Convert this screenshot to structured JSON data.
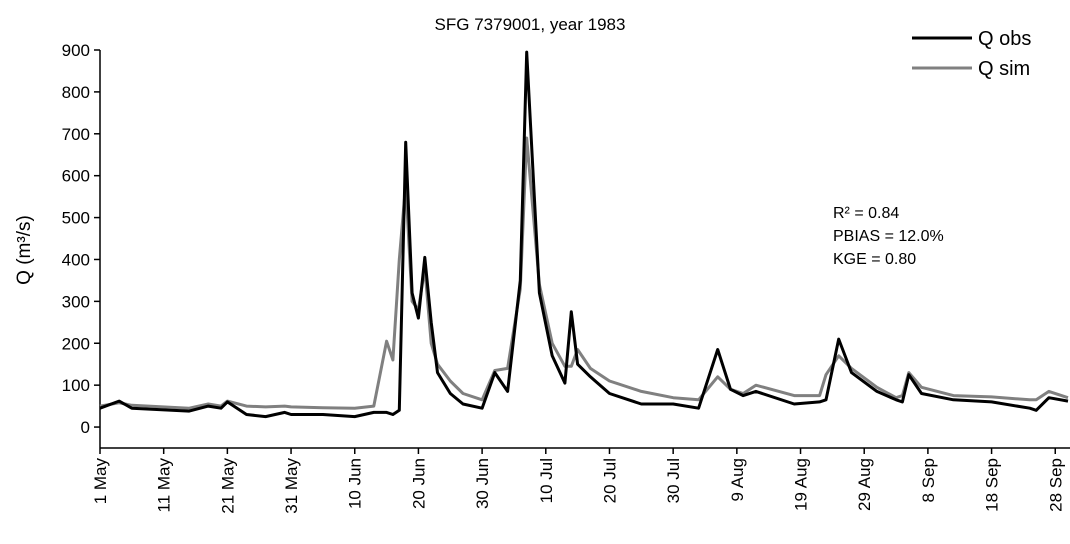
{
  "chart_data": {
    "type": "line",
    "title": "SFG 7379001, year 1983",
    "y_label": "Q (m³/s)",
    "x": [
      "1 May",
      "4 May",
      "6 May",
      "15 May",
      "18 May",
      "20 May",
      "21 May",
      "24 May",
      "27 May",
      "30 May",
      "31 May",
      "5 Jun",
      "10 Jun",
      "13 Jun",
      "15 Jun",
      "16 Jun",
      "17 Jun",
      "18 Jun",
      "19 Jun",
      "20 Jun",
      "21 Jun",
      "22 Jun",
      "23 Jun",
      "25 Jun",
      "27 Jun",
      "30 Jun",
      "2 Jul",
      "4 Jul",
      "6 Jul",
      "7 Jul",
      "9 Jul",
      "11 Jul",
      "13 Jul",
      "14 Jul",
      "15 Jul",
      "17 Jul",
      "20 Jul",
      "25 Jul",
      "30 Jul",
      "3 Aug",
      "6 Aug",
      "8 Aug",
      "10 Aug",
      "12 Aug",
      "18 Aug",
      "22 Aug",
      "23 Aug",
      "25 Aug",
      "27 Aug",
      "31 Aug",
      "3 Sep",
      "4 Sep",
      "5 Sep",
      "7 Sep",
      "12 Sep",
      "18 Sep",
      "24 Sep",
      "25 Sep",
      "27 Sep",
      "30 Sep"
    ],
    "series": [
      {
        "name": "Q obs",
        "color": "#000000",
        "width": 3,
        "values": [
          45,
          62,
          45,
          38,
          50,
          45,
          60,
          30,
          25,
          35,
          30,
          30,
          25,
          35,
          35,
          30,
          40,
          680,
          320,
          260,
          405,
          250,
          130,
          80,
          55,
          45,
          130,
          85,
          350,
          895,
          320,
          170,
          105,
          275,
          150,
          120,
          80,
          55,
          55,
          45,
          185,
          90,
          75,
          85,
          55,
          60,
          65,
          210,
          130,
          85,
          65,
          60,
          125,
          80,
          65,
          60,
          45,
          40,
          70,
          62
        ]
      },
      {
        "name": "Q sim",
        "color": "#808080",
        "width": 3,
        "values": [
          50,
          58,
          52,
          45,
          55,
          50,
          62,
          50,
          48,
          50,
          48,
          46,
          45,
          50,
          205,
          160,
          400,
          580,
          300,
          280,
          380,
          200,
          150,
          110,
          80,
          65,
          135,
          140,
          330,
          690,
          340,
          200,
          145,
          145,
          185,
          140,
          110,
          85,
          70,
          65,
          120,
          90,
          80,
          100,
          75,
          75,
          125,
          170,
          140,
          95,
          70,
          75,
          130,
          95,
          75,
          72,
          65,
          65,
          85,
          70
        ]
      }
    ],
    "xlim": [
      "1 May",
      "30 Sep"
    ],
    "xticks": [
      "1 May",
      "11 May",
      "21 May",
      "31 May",
      "10 Jun",
      "20 Jun",
      "30 Jun",
      "10 Jul",
      "20 Jul",
      "30 Jul",
      "9 Aug",
      "19 Aug",
      "29 Aug",
      "8 Sep",
      "18 Sep",
      "28 Sep"
    ],
    "ylim": [
      -50,
      900
    ],
    "yticks": [
      0,
      100,
      200,
      300,
      400,
      500,
      600,
      700,
      800,
      900
    ],
    "legend": "top-right",
    "annotations": [
      "R² = 0.84",
      "PBIAS = 12.0%",
      "KGE = 0.80"
    ]
  }
}
